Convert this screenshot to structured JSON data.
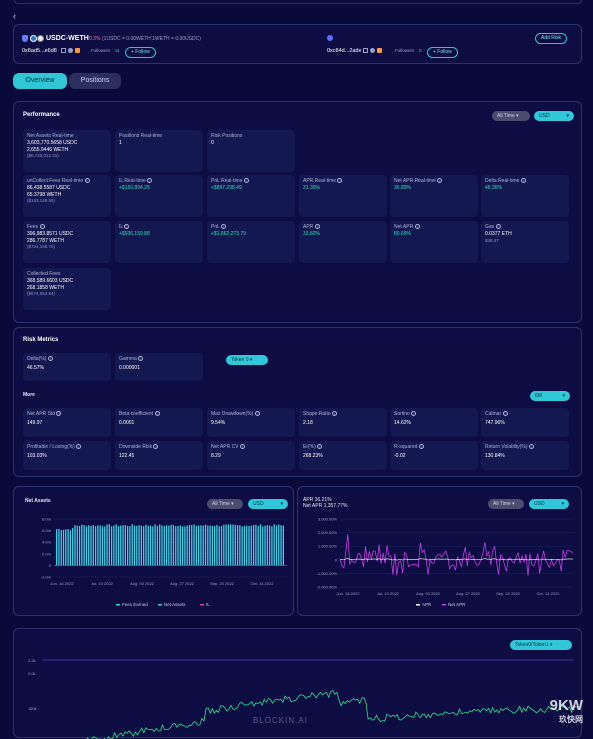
{
  "header": {
    "pair_name": "USDC-WETH",
    "fee_tier": "0.3%",
    "price_note": "(1USDC = 0.00WETH  1WETH = 0.00USDC)",
    "address_left": "0x8ad5...e6d8",
    "address_right": "0xc84d...2ade",
    "followers_label": "Followers",
    "followers_left": "11",
    "followers_right": "0",
    "follow_label": "+ Follow",
    "add_risk_label": "Add Risk"
  },
  "tabs": [
    "Overview",
    "Positions"
  ],
  "performance": {
    "title": "Performance",
    "time_select": "All Time",
    "currency_select": "USD",
    "cells": [
      {
        "label": "Net Assets Real-time",
        "l1": "3,603,770.5658 USDC",
        "l2": "2,655.9446 WETH",
        "sub": "($6,720,012.31)",
        "green": false,
        "info": false
      },
      {
        "label": "Positions Real-time",
        "l1": "1",
        "l2": "",
        "sub": "",
        "green": false,
        "info": false
      },
      {
        "label": "Risk Positions",
        "l1": "0",
        "l2": "",
        "sub": "",
        "green": false,
        "info": false
      },
      {
        "label": "unCollect Fees Real-time",
        "l1": "86,438.5587 USDC",
        "l2": "65.3798 WETH",
        "sub": "($163,149.55)",
        "green": false,
        "info": true
      },
      {
        "label": "IL Real-time",
        "l1": "+$150,894.25",
        "l2": "",
        "sub": "",
        "green": true,
        "info": true
      },
      {
        "label": "PnL Real-time",
        "l1": "+$897,298.49",
        "l2": "",
        "sub": "",
        "green": true,
        "info": true
      },
      {
        "label": "APR Real-time",
        "l1": "31.39%",
        "l2": "",
        "sub": "",
        "green": true,
        "info": true
      },
      {
        "label": "Net APR Real-time",
        "l1": "36.89%",
        "l2": "",
        "sub": "",
        "green": true,
        "info": true
      },
      {
        "label": "Delta Real-time",
        "l1": "46.36%",
        "l2": "",
        "sub": "",
        "green": true,
        "info": true
      },
      {
        "label": "Fees",
        "l1": "396,983.8571 USDC",
        "l2": "286.7787 WETH",
        "sub": "($724,166.76)",
        "green": false,
        "info": true
      },
      {
        "label": "IL",
        "l1": "+$936,159.88",
        "l2": "",
        "sub": "",
        "green": true,
        "info": true
      },
      {
        "label": "PnL",
        "l1": "+$1,662,273.79",
        "l2": "",
        "sub": "",
        "green": true,
        "info": true
      },
      {
        "label": "APR",
        "l1": "33.82%",
        "l2": "",
        "sub": "",
        "green": true,
        "info": true
      },
      {
        "label": "Net APR",
        "l1": "80.69%",
        "l2": "",
        "sub": "",
        "green": true,
        "info": true
      },
      {
        "label": "Gas",
        "l1": "0.0377 ETH",
        "l2": "",
        "sub": "$48.47",
        "green": false,
        "info": true
      },
      {
        "label": "Collected Fees",
        "l1": "368,589.6603 USDC",
        "l2": "268.1858 WETH",
        "sub": "($674,553.84)",
        "green": false,
        "info": false
      }
    ]
  },
  "risk": {
    "title": "Risk Metrics",
    "delta_label": "Delta(%)",
    "delta_value": "46.57%",
    "gamma_label": "Gamma",
    "gamma_value": "0.000001",
    "token_select": "Token 0",
    "more_label": "More",
    "period_select": "6M",
    "cells": [
      {
        "label": "Net APR Std",
        "value": "149.97"
      },
      {
        "label": "Beta coefficient",
        "value": "0.0001"
      },
      {
        "label": "Max Drawdown(%)",
        "value": "9.54%"
      },
      {
        "label": "Shape Ratio",
        "value": "2.18"
      },
      {
        "label": "Sortino",
        "value": "14.62%"
      },
      {
        "label": "Calmar",
        "value": "747.96%"
      },
      {
        "label": "Profitable / Losing(%)",
        "value": "103.03%"
      },
      {
        "label": "Downside Risk",
        "value": "122.45"
      },
      {
        "label": "Net APR CV",
        "value": "8.29"
      },
      {
        "label": "Er(%)",
        "value": "268.23%"
      },
      {
        "label": "R-squared",
        "value": "-0.02"
      },
      {
        "label": "Return Volatility(%)",
        "value": "130.84%"
      }
    ]
  },
  "net_assets_chart": {
    "title": "Net Assets",
    "time_select": "All Time",
    "currency_select": "USD",
    "legend": [
      "Fees Earned",
      "Net Assets",
      "IL"
    ],
    "colors": {
      "bars": "#3fd0e6",
      "il": "#e0409a",
      "fees": "#2fe0b4"
    },
    "chart_data": {
      "type": "bar",
      "yticks": [
        "8.0m",
        "6.0m",
        "4.0m",
        "2.0m",
        "0",
        "-2.0m"
      ],
      "xticks": [
        "Jun. 16 2022",
        "Jul. 10 2022",
        "Aug. 03 2022",
        "Aug. 27 2022",
        "Sep. 20 2022",
        "Oct. 14 2022"
      ],
      "ylim": [
        -2000000,
        8000000
      ]
    }
  },
  "apr_chart": {
    "title_apr": "APR 36.21%",
    "title_net": "Net APR 1,357.77%",
    "time_select": "All Time",
    "currency_select": "USD",
    "legend": [
      "APR",
      "Net APR"
    ],
    "colors": {
      "apr": "#ffffff",
      "net": "#c040e0"
    },
    "chart_data": {
      "type": "line",
      "yticks": [
        "3,000.00%",
        "2,000.00%",
        "1,000.00%",
        "0",
        "-1,000.00%",
        "-2,000.00%"
      ],
      "xticks": [
        "Jun. 16 2022",
        "Jul. 10 2022",
        "Aug. 03 2022",
        "Aug. 27 2022",
        "Sep. 20 2022",
        "Oct. 14 2022"
      ],
      "ylim": [
        -2000,
        3000
      ]
    }
  },
  "price_chart": {
    "token_select": "Token0/Token1",
    "top_label": "2.2k",
    "yticks": [
      "2.0k",
      "150k"
    ],
    "colors": {
      "line": "#2fe08a"
    }
  },
  "watermark": {
    "main": "9KW",
    "sub": "玖快网",
    "site": "BLOCKIN.AI"
  }
}
